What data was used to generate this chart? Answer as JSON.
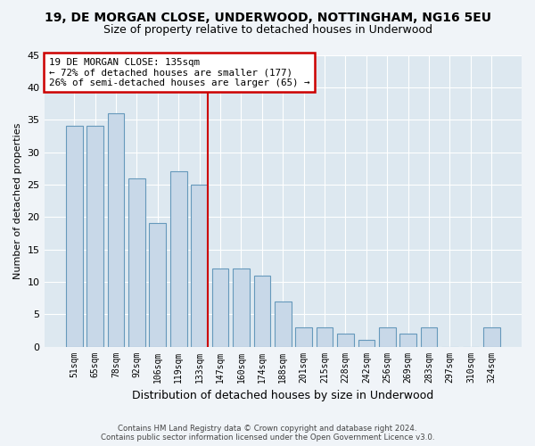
{
  "title_line1": "19, DE MORGAN CLOSE, UNDERWOOD, NOTTINGHAM, NG16 5EU",
  "title_line2": "Size of property relative to detached houses in Underwood",
  "xlabel": "Distribution of detached houses by size in Underwood",
  "ylabel": "Number of detached properties",
  "footer_line1": "Contains HM Land Registry data © Crown copyright and database right 2024.",
  "footer_line2": "Contains public sector information licensed under the Open Government Licence v3.0.",
  "categories": [
    "51sqm",
    "65sqm",
    "78sqm",
    "92sqm",
    "106sqm",
    "119sqm",
    "133sqm",
    "147sqm",
    "160sqm",
    "174sqm",
    "188sqm",
    "201sqm",
    "215sqm",
    "228sqm",
    "242sqm",
    "256sqm",
    "269sqm",
    "283sqm",
    "297sqm",
    "310sqm",
    "324sqm"
  ],
  "values": [
    34,
    34,
    36,
    26,
    19,
    27,
    25,
    12,
    12,
    11,
    7,
    3,
    3,
    2,
    1,
    3,
    2,
    3,
    0,
    0,
    3
  ],
  "bar_color": "#c8d8e8",
  "bar_edge_color": "#6699bb",
  "vline_index": 6,
  "vline_color": "#cc0000",
  "annotation_text": "19 DE MORGAN CLOSE: 135sqm\n← 72% of detached houses are smaller (177)\n26% of semi-detached houses are larger (65) →",
  "annotation_box_color": "#cc0000",
  "ylim": [
    0,
    45
  ],
  "yticks": [
    0,
    5,
    10,
    15,
    20,
    25,
    30,
    35,
    40,
    45
  ],
  "background_color": "#dde8f0",
  "grid_color": "#ffffff",
  "fig_bg_color": "#f0f4f8"
}
